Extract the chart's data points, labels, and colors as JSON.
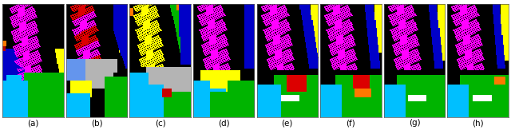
{
  "labels": [
    "(a)",
    "(b)",
    "(c)",
    "(d)",
    "(e)",
    "(f)",
    "(g)",
    "(h)"
  ],
  "figure_width": 6.4,
  "figure_height": 1.63,
  "dpi": 100,
  "label_fontsize": 7.5
}
